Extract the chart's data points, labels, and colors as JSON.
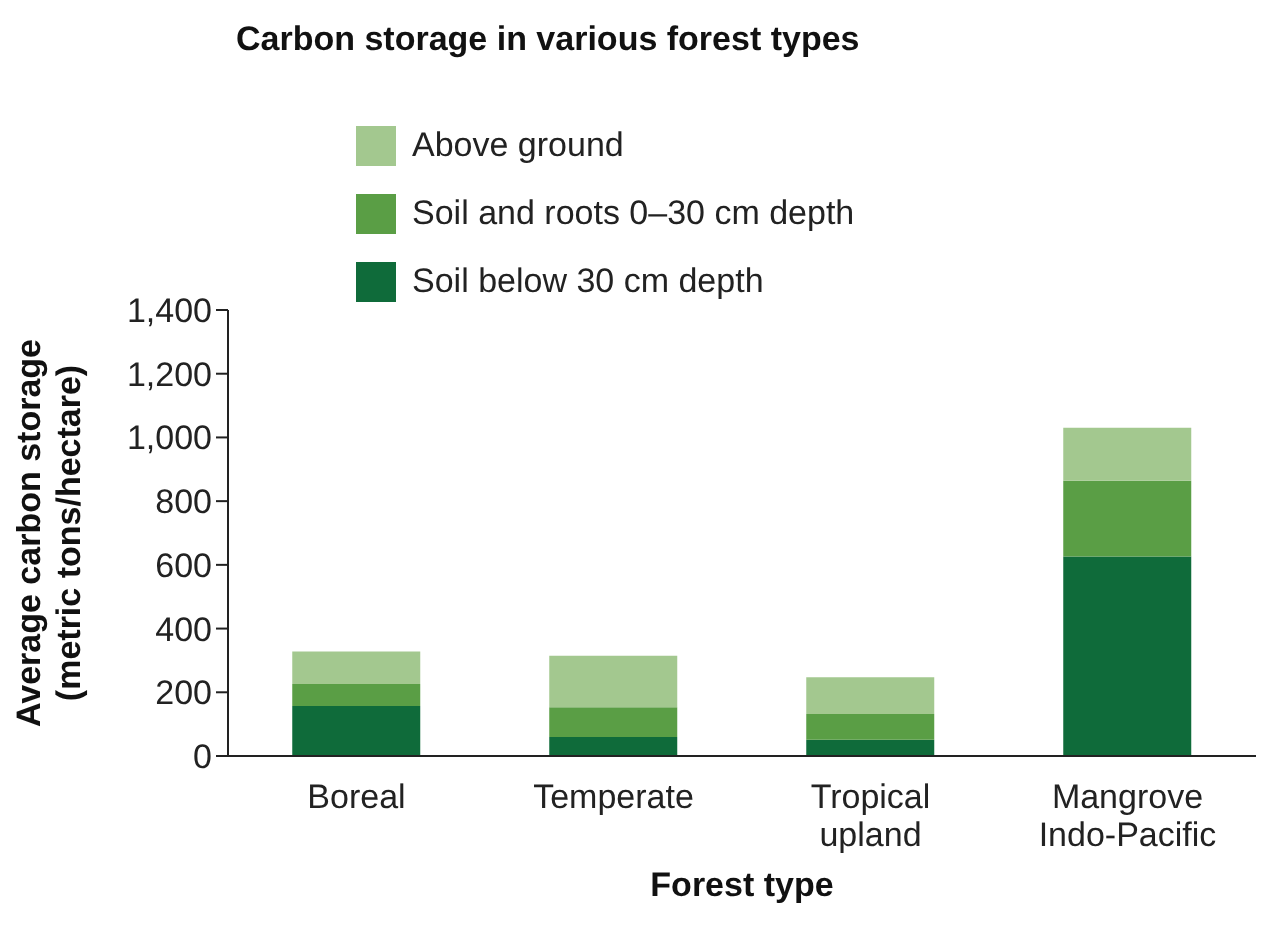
{
  "chart_data": {
    "type": "bar",
    "title": "Carbon storage in various forest types",
    "xlabel": "Forest type",
    "ylabel": "Average carbon storage\n(metric tons/hectare)",
    "categories": [
      "Boreal",
      "Temperate",
      "Tropical upland",
      "Mangrove Indo-Pacific"
    ],
    "stacked": true,
    "series": [
      {
        "name": "Soil below 30 cm depth",
        "color": "#0f6b3a",
        "values": [
          157,
          60,
          51,
          626
        ]
      },
      {
        "name": "Soil and roots 0–30 cm depth",
        "color": "#5a9e45",
        "values": [
          69,
          93,
          81,
          238
        ]
      },
      {
        "name": "Above ground",
        "color": "#a3c88f",
        "values": [
          102,
          162,
          115,
          166
        ]
      }
    ],
    "ylim": [
      0,
      1400
    ],
    "yticks": [
      0,
      200,
      400,
      600,
      800,
      {
        "value": 1000,
        "label": "1,000"
      },
      {
        "value": 1200,
        "label": "1,200"
      },
      {
        "value": 1400,
        "label": "1,400"
      }
    ],
    "grid": false,
    "legend": "top left"
  }
}
